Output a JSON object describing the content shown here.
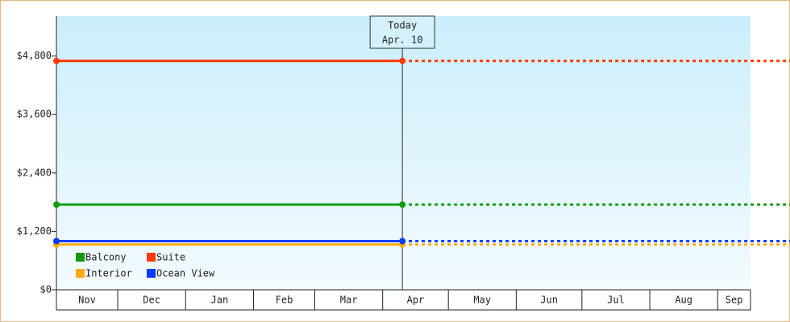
{
  "chart_data": {
    "type": "line",
    "categories": [
      "Nov",
      "Dec",
      "Jan",
      "Feb",
      "Mar",
      "Apr",
      "May",
      "Jun",
      "Jul",
      "Aug",
      "Sep"
    ],
    "xlim": [
      0,
      317
    ],
    "xticks": [
      0,
      28,
      59,
      90,
      118,
      149,
      179,
      210,
      240,
      271,
      302,
      317
    ],
    "ylim": [
      0,
      5620
    ],
    "yticks": [
      {
        "value": 0,
        "label": "$0"
      },
      {
        "value": 1200,
        "label": "$1,200"
      },
      {
        "value": 2400,
        "label": "$2,400"
      },
      {
        "value": 3600,
        "label": "$3,600"
      },
      {
        "value": 4800,
        "label": "$4,800"
      }
    ],
    "series": [
      {
        "name": "Balcony",
        "color": "#139a13",
        "x": [
          0,
          158
        ],
        "values": [
          1750,
          1750
        ]
      },
      {
        "name": "Suite",
        "color": "#ff3a0a",
        "x": [
          0,
          158
        ],
        "values": [
          4700,
          4700
        ]
      },
      {
        "name": "Interior",
        "color": "#ffaa11",
        "x": [
          0,
          158
        ],
        "values": [
          930,
          930
        ]
      },
      {
        "name": "Ocean View",
        "color": "#0a3cff",
        "x": [
          0,
          158
        ],
        "values": [
          1000,
          1000
        ]
      }
    ],
    "today": {
      "x": 158,
      "label": [
        "Today",
        "Apr. 10"
      ]
    },
    "projection": "dashed"
  }
}
